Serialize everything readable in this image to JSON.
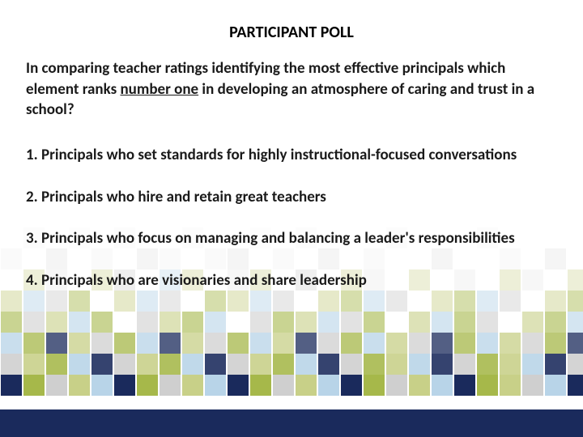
{
  "title": "PARTICIPANT POLL",
  "question_pre": "In comparing teacher ratings identifying the most effective principals which element ranks ",
  "question_underline": "number one",
  "question_post": " in developing an atmosphere of caring and trust in a school?",
  "options": [
    "1. Principals who set standards for highly instructional-focused conversations",
    "2. Principals who hire and retain great teachers",
    "3. Principals who focus on managing and balancing a leader's responsibilities",
    "4. Principals who are visionaries and share leadership"
  ],
  "mosaic": {
    "palette": {
      "navy": "#1a2a5c",
      "olive": "#a6b84a",
      "sage": "#c8d088",
      "lightblue": "#b8d4e8",
      "gray": "#cfcfcf",
      "lightgray": "#e8e8e8",
      "white": "#ffffff",
      "offwhite": "#f5f5f0"
    },
    "rows": [
      {
        "opacity": 0.12,
        "cells": [
          "white",
          "lightgray",
          "white",
          "offwhite",
          "white",
          "lightgray",
          "white",
          "white",
          "lightgray",
          "white",
          "white",
          "offwhite",
          "white",
          "lightgray",
          "white",
          "white",
          "white",
          "lightgray",
          "white",
          "white",
          "white",
          "lightgray",
          "white",
          "white",
          "white",
          "white"
        ]
      },
      {
        "opacity": 0.2,
        "cells": [
          "lightgray",
          "white",
          "gray",
          "white",
          "lightgray",
          "white",
          "gray",
          "lightgray",
          "white",
          "lightgray",
          "gray",
          "white",
          "lightgray",
          "white",
          "gray",
          "white",
          "lightgray",
          "white",
          "white",
          "gray",
          "white",
          "white",
          "lightgray",
          "white",
          "gray",
          "white"
        ]
      },
      {
        "opacity": 0.32,
        "cells": [
          "white",
          "sage",
          "lightgray",
          "white",
          "sage",
          "gray",
          "white",
          "lightblue",
          "sage",
          "white",
          "lightgray",
          "sage",
          "white",
          "gray",
          "white",
          "sage",
          "lightgray",
          "white",
          "sage",
          "white",
          "lightgray",
          "white",
          "sage",
          "lightgray",
          "white",
          "sage"
        ]
      },
      {
        "opacity": 0.45,
        "cells": [
          "sage",
          "lightblue",
          "gray",
          "olive",
          "white",
          "sage",
          "lightblue",
          "gray",
          "white",
          "olive",
          "sage",
          "lightblue",
          "gray",
          "white",
          "sage",
          "olive",
          "lightblue",
          "gray",
          "white",
          "sage",
          "olive",
          "lightblue",
          "gray",
          "white",
          "sage",
          "olive"
        ]
      },
      {
        "opacity": 0.6,
        "cells": [
          "olive",
          "gray",
          "sage",
          "lightblue",
          "olive",
          "white",
          "gray",
          "sage",
          "olive",
          "lightblue",
          "white",
          "gray",
          "olive",
          "sage",
          "lightblue",
          "gray",
          "olive",
          "white",
          "sage",
          "lightblue",
          "olive",
          "gray",
          "white",
          "sage",
          "olive",
          "lightblue"
        ]
      },
      {
        "opacity": 0.75,
        "cells": [
          "lightblue",
          "olive",
          "navy",
          "sage",
          "gray",
          "olive",
          "lightblue",
          "navy",
          "sage",
          "gray",
          "olive",
          "lightblue",
          "sage",
          "navy",
          "gray",
          "olive",
          "lightblue",
          "sage",
          "gray",
          "navy",
          "olive",
          "lightblue",
          "sage",
          "gray",
          "olive",
          "navy"
        ]
      },
      {
        "opacity": 0.88,
        "cells": [
          "gray",
          "sage",
          "olive",
          "lightblue",
          "navy",
          "gray",
          "sage",
          "olive",
          "lightblue",
          "navy",
          "gray",
          "sage",
          "olive",
          "lightblue",
          "navy",
          "gray",
          "olive",
          "sage",
          "lightblue",
          "navy",
          "gray",
          "olive",
          "sage",
          "lightblue",
          "navy",
          "gray"
        ]
      },
      {
        "opacity": 1.0,
        "cells": [
          "navy",
          "olive",
          "gray",
          "sage",
          "lightblue",
          "navy",
          "olive",
          "gray",
          "sage",
          "lightblue",
          "navy",
          "olive",
          "gray",
          "sage",
          "lightblue",
          "navy",
          "olive",
          "gray",
          "sage",
          "lightblue",
          "navy",
          "olive",
          "sage",
          "gray",
          "lightblue",
          "navy"
        ]
      }
    ]
  },
  "footer_color": "#1a2a5c"
}
